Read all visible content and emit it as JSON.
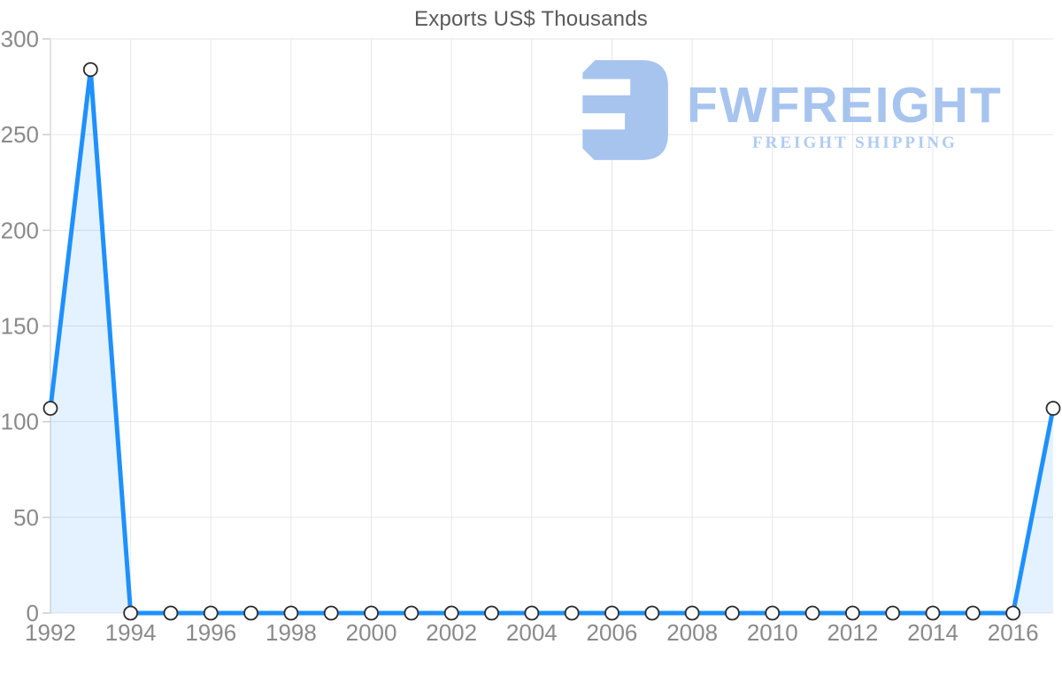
{
  "chart_data": {
    "type": "area",
    "title": "Exports US$ Thousands",
    "x": [
      1992,
      1993,
      1994,
      1995,
      1996,
      1997,
      1998,
      1999,
      2000,
      2001,
      2002,
      2003,
      2004,
      2005,
      2006,
      2007,
      2008,
      2009,
      2010,
      2011,
      2012,
      2013,
      2014,
      2015,
      2016,
      2017
    ],
    "values": [
      107,
      284,
      0,
      0,
      0,
      0,
      0,
      0,
      0,
      0,
      0,
      0,
      0,
      0,
      0,
      0,
      0,
      0,
      0,
      0,
      0,
      0,
      0,
      0,
      0,
      107
    ],
    "x_ticks": [
      1992,
      1994,
      1996,
      1998,
      2000,
      2002,
      2004,
      2006,
      2008,
      2010,
      2012,
      2014,
      2016
    ],
    "y_ticks": [
      0,
      50,
      100,
      150,
      200,
      250,
      300
    ],
    "x_range": [
      1992,
      2017
    ],
    "ylim": [
      0,
      300
    ],
    "xlabel": "",
    "ylabel": "",
    "grid": true,
    "legend": "none",
    "series_name": "Exports US$ Thousands"
  },
  "colors": {
    "line": "#1E90FF",
    "fill": "#1E90FF",
    "fill_opacity": "0.12",
    "marker_fill": "#FFFFFF",
    "marker_stroke": "#2B2B2B",
    "grid": "#E6E6E6",
    "axis": "#D8D8D8",
    "tick": "#CCCCCC",
    "label": "#8A8A8A",
    "title": "#5A5A5A",
    "logo_accent": "#A7C4EF",
    "logo_tagline": "#AFCBF3"
  },
  "logo": {
    "name": "FWFREIGHT",
    "tagline": "FREIGHT SHIPPING"
  }
}
